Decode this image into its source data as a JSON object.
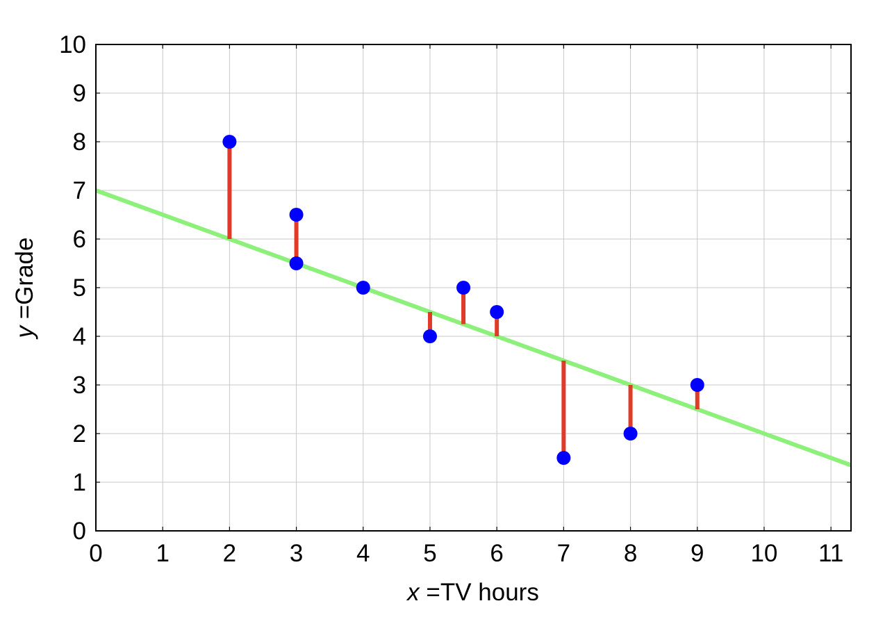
{
  "chart_data": {
    "type": "scatter",
    "xlabel": {
      "var": "x",
      "eq": " =",
      "text": "TV hours"
    },
    "ylabel": {
      "var": "y",
      "eq": " =",
      "text": "Grade"
    },
    "xlim": [
      0,
      11.3
    ],
    "ylim": [
      0,
      10
    ],
    "xticks": [
      0,
      1,
      2,
      3,
      4,
      5,
      6,
      7,
      8,
      9,
      10,
      11
    ],
    "yticks": [
      0,
      1,
      2,
      3,
      4,
      5,
      6,
      7,
      8,
      9,
      10
    ],
    "grid": true,
    "points": [
      {
        "x": 2,
        "y": 8
      },
      {
        "x": 3,
        "y": 6.5
      },
      {
        "x": 3,
        "y": 5.5
      },
      {
        "x": 4,
        "y": 5
      },
      {
        "x": 5,
        "y": 4
      },
      {
        "x": 5.5,
        "y": 5
      },
      {
        "x": 6,
        "y": 4.5
      },
      {
        "x": 7,
        "y": 1.5
      },
      {
        "x": 8,
        "y": 2
      },
      {
        "x": 9,
        "y": 3
      }
    ],
    "fit_line": {
      "intercept": 7,
      "slope": -0.5
    },
    "colors": {
      "points": "#0000ff",
      "fit_line": "#8cf07a",
      "residuals": "#e03a28",
      "grid": "#c8c8c8"
    }
  }
}
